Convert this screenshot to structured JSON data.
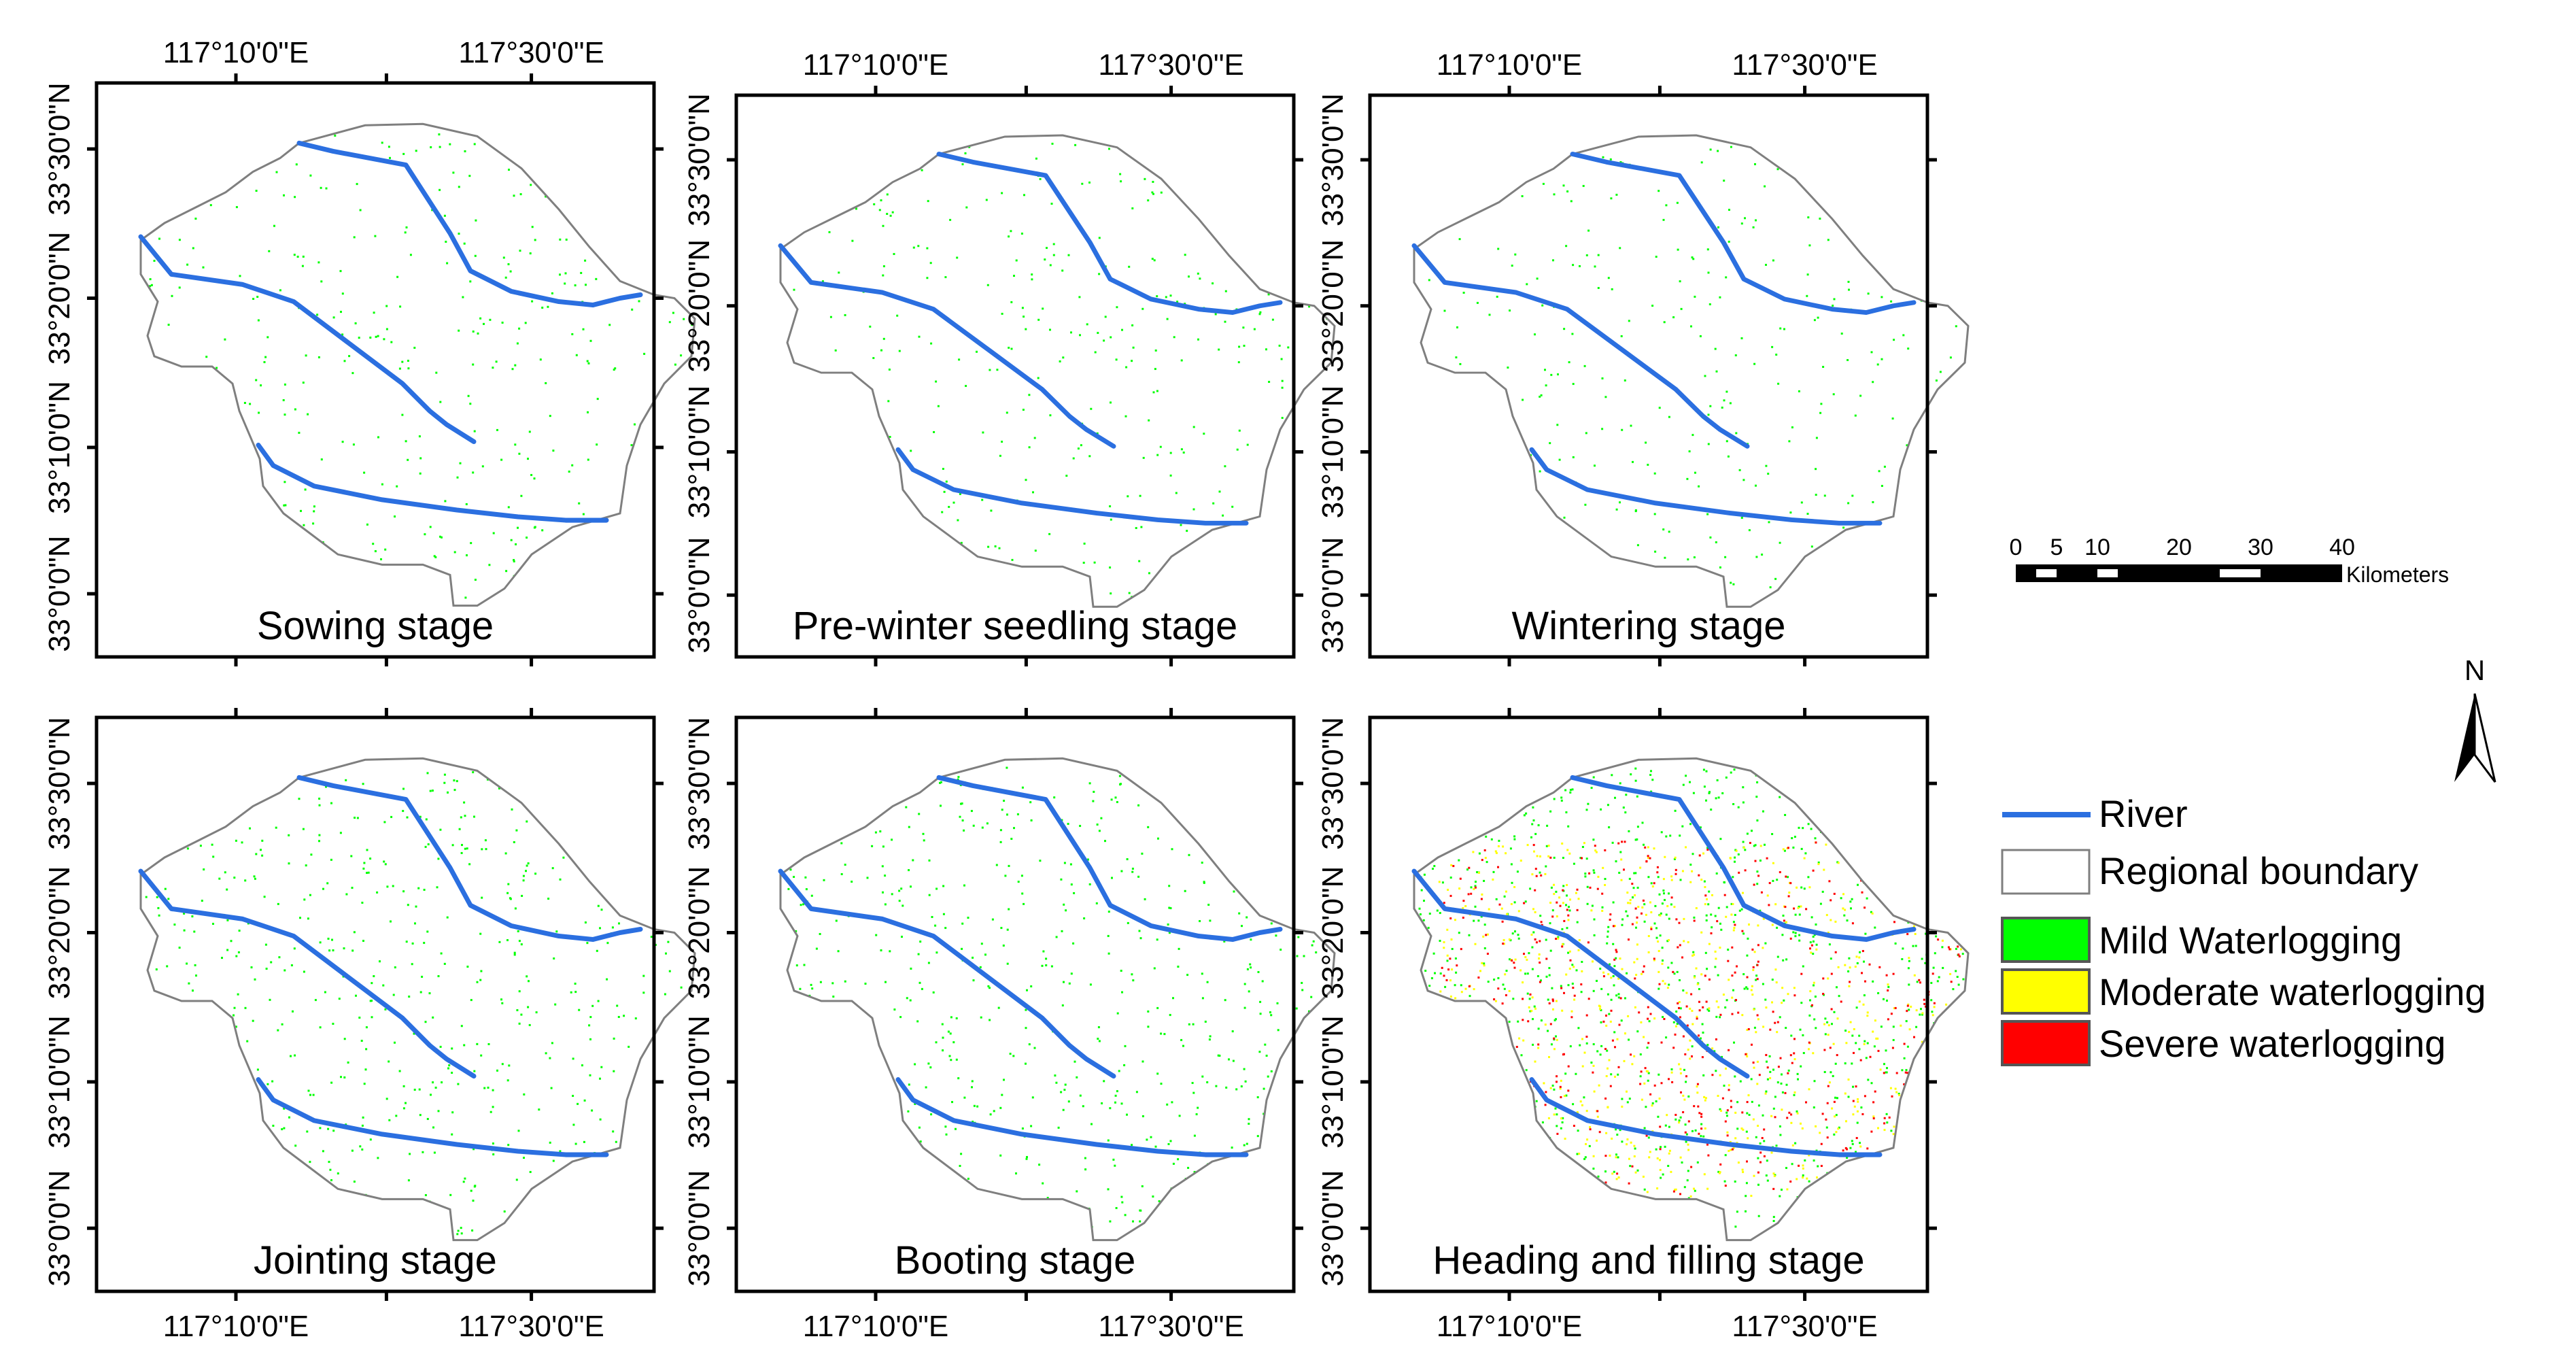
{
  "figure": {
    "panels": [
      {
        "id": "sowing",
        "label": "Sowing stage",
        "level": 0
      },
      {
        "id": "pre-winter",
        "label": "Pre-winter seedling stage",
        "level": 0
      },
      {
        "id": "wintering",
        "label": "Wintering stage",
        "level": 0
      },
      {
        "id": "jointing",
        "label": "Jointing stage",
        "level": 1
      },
      {
        "id": "booting",
        "label": "Booting stage",
        "level": 1
      },
      {
        "id": "heading",
        "label": "Heading and filling stage",
        "level": 2
      }
    ],
    "lon_labels": [
      "117°10'0\"E",
      "117°30'0\"E"
    ],
    "lat_labels": [
      "33°30'0\"N",
      "33°20'0\"N",
      "33°10'0\"N",
      "33°0'0\"N"
    ]
  },
  "scale_bar": {
    "ticks": [
      "0",
      "5",
      "10",
      "20",
      "30",
      "40"
    ],
    "unit": "Kilometers"
  },
  "north_arrow": {
    "label": "N"
  },
  "legend": {
    "river": "River",
    "boundary": "Regional boundary",
    "classes": [
      {
        "label": "Mild Waterlogging",
        "color": "#00ff00"
      },
      {
        "label": "Moderate waterlogging",
        "color": "#ffff00"
      },
      {
        "label": "Severe waterlogging",
        "color": "#ff0000"
      }
    ]
  },
  "colors": {
    "river": "#2b6fe0",
    "boundary": "#7f7f7f",
    "frame": "#000000"
  }
}
